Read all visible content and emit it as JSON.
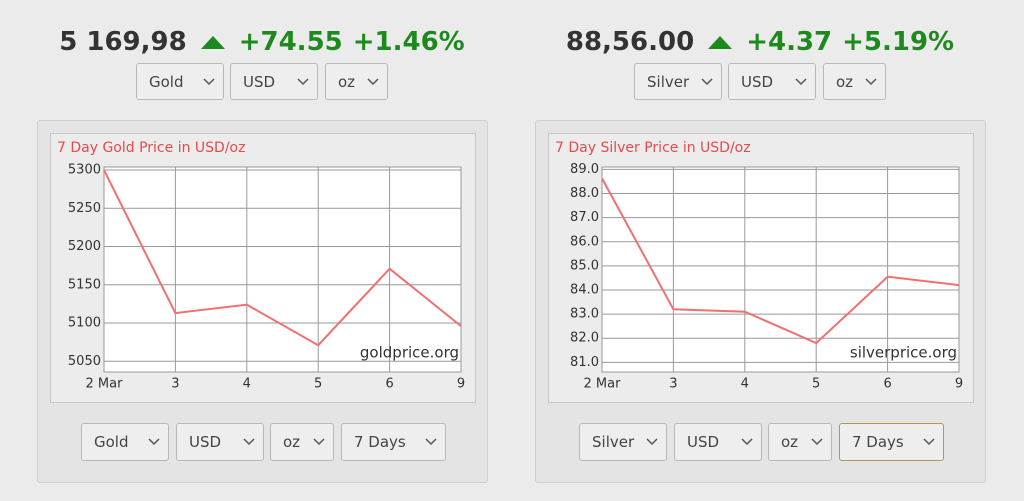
{
  "widgets": [
    {
      "price": "5 169,98",
      "change": "+74.55",
      "change_percent": "+1.46%",
      "selectors": [
        "Gold",
        "USD",
        "oz"
      ],
      "chart_selectors": [
        "Gold",
        "USD",
        "oz",
        "7 Days"
      ]
    },
    {
      "price": "88,56.00",
      "change": "+4.37",
      "change_percent": "+5.19%",
      "selectors": [
        "Silver",
        "USD",
        "oz"
      ],
      "chart_selectors": [
        "Silver",
        "USD",
        "oz",
        "7 Days"
      ]
    }
  ],
  "chart_data": [
    {
      "type": "line",
      "title": "7 Day Gold Price in USD/oz",
      "annotation": "goldprice.org",
      "color": "#f07070",
      "grid": true,
      "categories": [
        "2 Mar",
        "3",
        "4",
        "5",
        "6",
        "9"
      ],
      "values": [
        5300,
        5113,
        5124,
        5071,
        5171,
        5096
      ],
      "ylim": [
        5036,
        5304
      ],
      "yticks": [
        5050,
        5100,
        5150,
        5200,
        5250,
        5300
      ]
    },
    {
      "type": "line",
      "title": "7 Day Silver Price in USD/oz",
      "annotation": "silverprice.org",
      "color": "#f07070",
      "grid": true,
      "categories": [
        "2 Mar",
        "3",
        "4",
        "5",
        "6",
        "9"
      ],
      "values": [
        88.63,
        83.2,
        83.1,
        81.8,
        84.55,
        84.2
      ],
      "ylim": [
        80.6,
        89.1
      ],
      "yticks": [
        {
          "value": 81,
          "label": "81.0"
        },
        {
          "value": 82,
          "label": "82.0"
        },
        {
          "value": 83,
          "label": "83.0"
        },
        {
          "value": 84,
          "label": "84.0"
        },
        {
          "value": 85,
          "label": "85.0"
        },
        {
          "value": 86,
          "label": "86.0"
        },
        {
          "value": 87,
          "label": "87.0"
        },
        {
          "value": 88,
          "label": "88.0"
        },
        {
          "value": 89,
          "label": "89.0"
        }
      ]
    }
  ]
}
